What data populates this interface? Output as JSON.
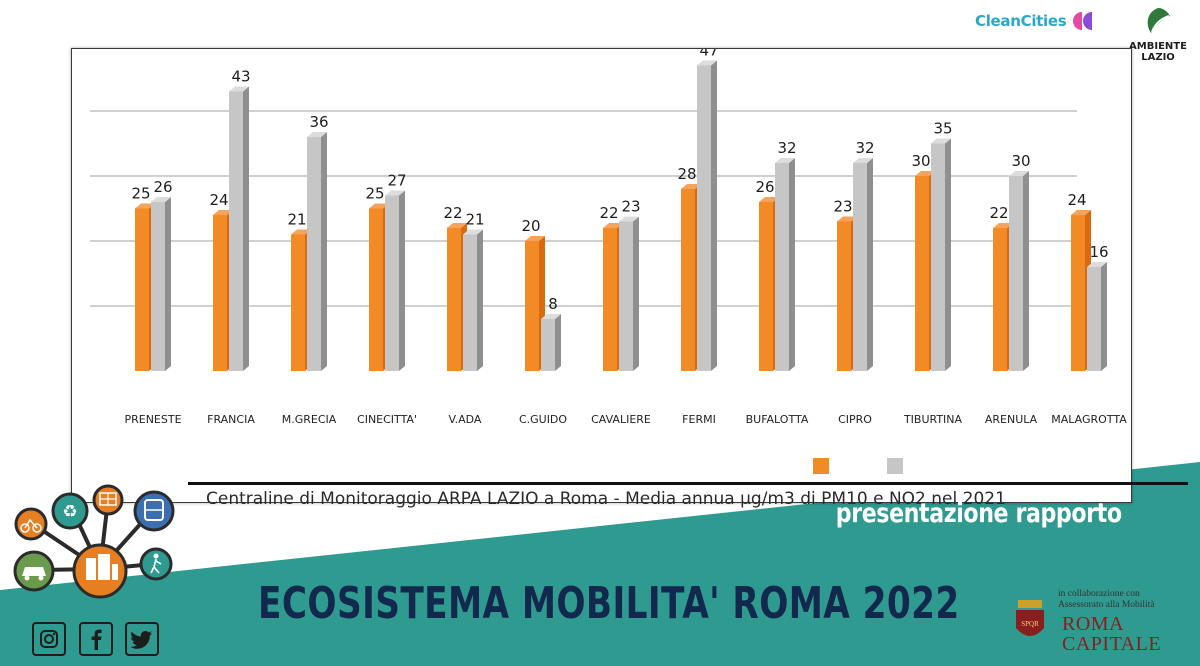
{
  "brand": {
    "cleancities": "CleanCities",
    "legambiente_line1": "AMBIENTE",
    "legambiente_line2": "LAZIO"
  },
  "chart_data": {
    "type": "bar",
    "categories": [
      "PRENESTE",
      "FRANCIA",
      "M.GRECIA",
      "CINECITTA'",
      "V.ADA",
      "C.GUIDO",
      "CAVALIERE",
      "FERMI",
      "BUFALOTTA",
      "CIPRO",
      "TIBURTINA",
      "ARENULA",
      "MALAGROTTA"
    ],
    "series": [
      {
        "values": [
          25,
          24,
          21,
          25,
          22,
          20,
          22,
          28,
          26,
          23,
          30,
          22,
          24
        ],
        "color": "#f28a26"
      },
      {
        "values": [
          26,
          43,
          36,
          27,
          21,
          8,
          23,
          47,
          32,
          32,
          35,
          30,
          16
        ],
        "color": "#c6c6c6"
      }
    ],
    "ylim": [
      0,
      50
    ],
    "grid": true,
    "caption": "Centraline di Monitoraggio ARPA LAZIO a Roma - Media annua μg/m3  di PM10 e NO2 nel 2021"
  },
  "footer": {
    "subtitle": "presentazione rapporto",
    "title": "ECOSISTEMA MOBILITA' ROMA 2022",
    "collab_line1": "in collaborazione con",
    "collab_line2": "Assessorato alla Mobilità",
    "roma_line1": "ROMA",
    "roma_line2": "CAPITALE",
    "teal_color": "#2e9a90",
    "title_color": "#12294d"
  },
  "social": {
    "instagram": "instagram-icon",
    "facebook": "facebook-icon",
    "twitter": "twitter-icon"
  }
}
